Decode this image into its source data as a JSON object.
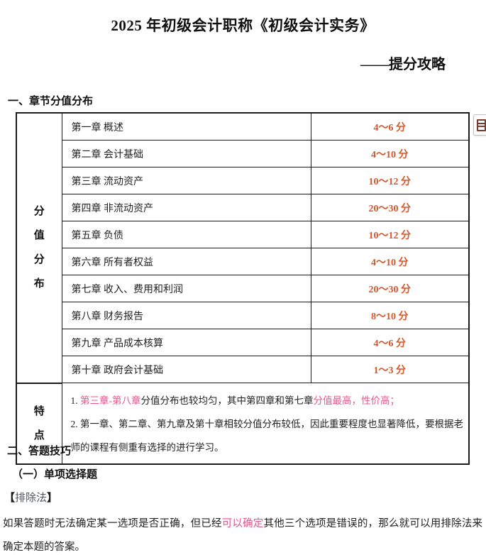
{
  "page": {
    "title": "2025 年初级会计职称《初级会计实务》",
    "subtitle": "——提分攻略"
  },
  "colors": {
    "highlight_pink": "#e7548c",
    "score_orange": "#dd5426"
  },
  "section1": {
    "heading": "一、章节分值分布",
    "table": {
      "left_label": "分值分布",
      "rows": [
        {
          "chapter": "第一章 概述",
          "score": "4～6 分",
          "highlighted": false
        },
        {
          "chapter": "第二章 会计基础",
          "score": "4～10 分",
          "highlighted": false
        },
        {
          "chapter": "第三章 流动资产",
          "score": "10～12 分",
          "highlighted": true
        },
        {
          "chapter": "第四章 非流动资产",
          "score": "20～30 分",
          "highlighted": true
        },
        {
          "chapter": "第五章 负债",
          "score": "10～12 分",
          "highlighted": true
        },
        {
          "chapter": "第六章 所有者权益",
          "score": "4～10 分",
          "highlighted": true
        },
        {
          "chapter": "第七章 收入、费用和利润",
          "score": "20～30 分",
          "highlighted": true
        },
        {
          "chapter": "第八章 财务报告",
          "score": "8～10 分",
          "highlighted": true
        },
        {
          "chapter": "第九章 产品成本核算",
          "score": "4～6 分",
          "highlighted": false
        },
        {
          "chapter": "第十章 政府会计基础",
          "score": "1～3 分",
          "highlighted": false
        }
      ],
      "feature_label": "特点",
      "notes": {
        "n1_prefix": "1. ",
        "n1_pink1": "第三章-第八章",
        "n1_black": "分值分布也较均匀，其中第四章和第七章",
        "n1_pink2": "分值最高，性价高；",
        "n2": "2. 第一章、第二章、第九章及第十章相较分值分布较低，因此重要程度也显著降低，要根据老师的课程有侧重有选择的进行学习。"
      }
    }
  },
  "section2": {
    "heading": "二、答题技巧",
    "sub_heading": "（一）单项选择题",
    "method": {
      "bracket_open": "【",
      "name": "排除法",
      "bracket_close": "】"
    },
    "paragraph": {
      "p1": "如果答题时无法确定某一选项是否正确，但已经",
      "p1_pink": "可以确定",
      "p2": "其他三个选项是错误的，那么就可以用排除法来确定本题的答案。"
    }
  },
  "widgets": {
    "table_tool_icon": "table-grid-icon"
  }
}
